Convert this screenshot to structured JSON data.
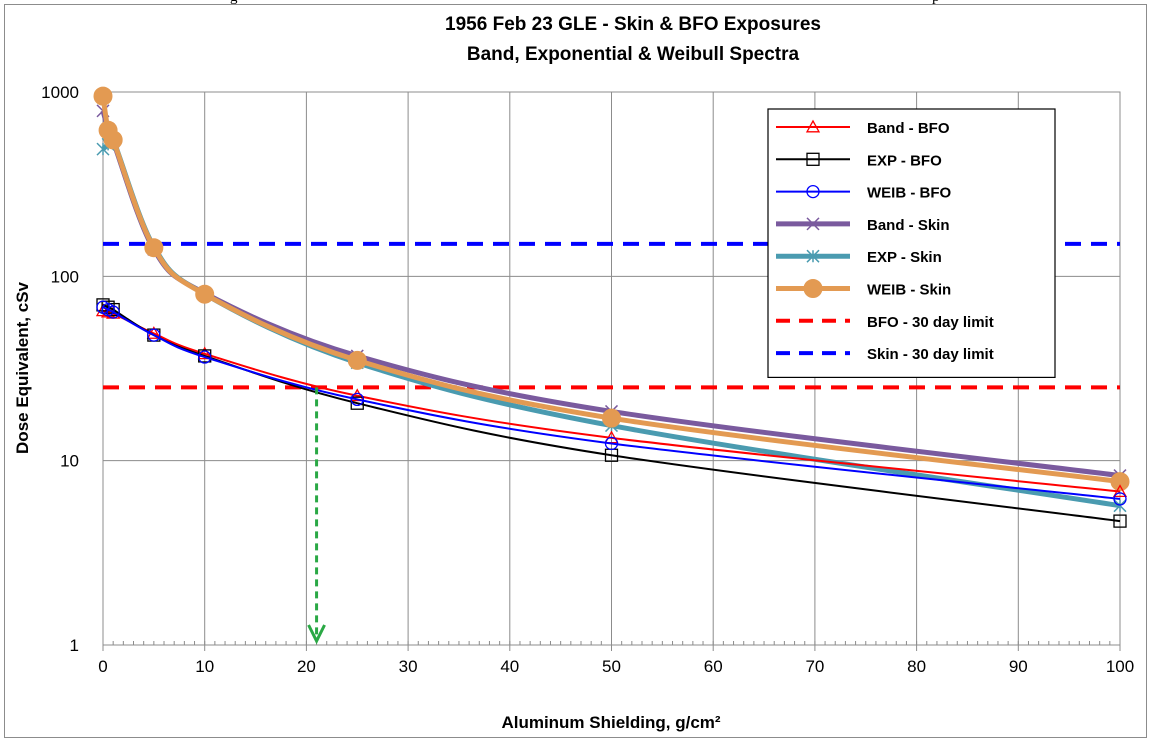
{
  "page_fragments": {
    "left": "g",
    "right": "p"
  },
  "chart_data": {
    "type": "line",
    "title": "1956 Feb 23 GLE - Skin & BFO Exposures",
    "subtitle": "Band, Exponential & Weibull Spectra",
    "xlabel": "Aluminum Shielding, g/cm²",
    "ylabel": "Dose Equivalent, cSv",
    "xlim": [
      0,
      100
    ],
    "ylim": [
      1,
      1000
    ],
    "yscale": "log",
    "x_ticks": [
      0,
      10,
      20,
      30,
      40,
      50,
      60,
      70,
      80,
      90,
      100
    ],
    "y_ticks": [
      1,
      10,
      100,
      1000
    ],
    "grid": true,
    "legend_position": "right",
    "series": [
      {
        "name": "Band - BFO",
        "color": "#ff0000",
        "width": 2,
        "marker": "triangle",
        "x": [
          0,
          0.5,
          1,
          5,
          10,
          25,
          50,
          100
        ],
        "y": [
          65,
          64,
          63,
          49,
          38,
          22.5,
          13.3,
          6.8
        ]
      },
      {
        "name": "EXP - BFO",
        "color": "#000000",
        "width": 2,
        "marker": "square",
        "x": [
          0,
          0.5,
          1,
          5,
          10,
          25,
          50,
          100
        ],
        "y": [
          70,
          68,
          66,
          48,
          37,
          20.5,
          10.7,
          4.7
        ]
      },
      {
        "name": "WEIB - BFO",
        "color": "#0000ff",
        "width": 2,
        "marker": "circle",
        "x": [
          0,
          0.5,
          1,
          5,
          10,
          25,
          50,
          100
        ],
        "y": [
          68,
          66,
          64,
          48,
          36.5,
          21.5,
          12.4,
          6.2
        ]
      },
      {
        "name": "Band - Skin",
        "color": "#7a5a9e",
        "width": 5,
        "marker": "x",
        "x": [
          0,
          0.5,
          1,
          5,
          10,
          25,
          50,
          100
        ],
        "y": [
          790,
          630,
          540,
          140,
          81,
          37,
          18.5,
          8.3
        ]
      },
      {
        "name": "EXP - Skin",
        "color": "#4a9bb0",
        "width": 5,
        "marker": "star",
        "x": [
          0,
          0.5,
          1,
          5,
          10,
          25,
          50,
          100
        ],
        "y": [
          490,
          520,
          550,
          145,
          80,
          34,
          15.5,
          5.7
        ]
      },
      {
        "name": "WEIB - Skin",
        "color": "#e39a52",
        "width": 5,
        "marker": "dot",
        "x": [
          0,
          0.5,
          1,
          5,
          10,
          25,
          50,
          100
        ],
        "y": [
          950,
          620,
          550,
          143,
          80,
          35,
          17,
          7.7
        ]
      },
      {
        "name": "BFO - 30 day limit",
        "color": "#ff0000",
        "width": 4,
        "dash": true,
        "marker": "none",
        "x": [
          0,
          100
        ],
        "y": [
          25,
          25
        ]
      },
      {
        "name": "Skin - 30 day limit",
        "color": "#0000ff",
        "width": 4,
        "dash": true,
        "marker": "none",
        "x": [
          0,
          100
        ],
        "y": [
          150,
          150
        ]
      }
    ],
    "annotations": [
      {
        "type": "arrow",
        "color": "#2aa845",
        "style": "dashed",
        "x": 21,
        "from_y": 25,
        "to_y": 1
      }
    ]
  }
}
